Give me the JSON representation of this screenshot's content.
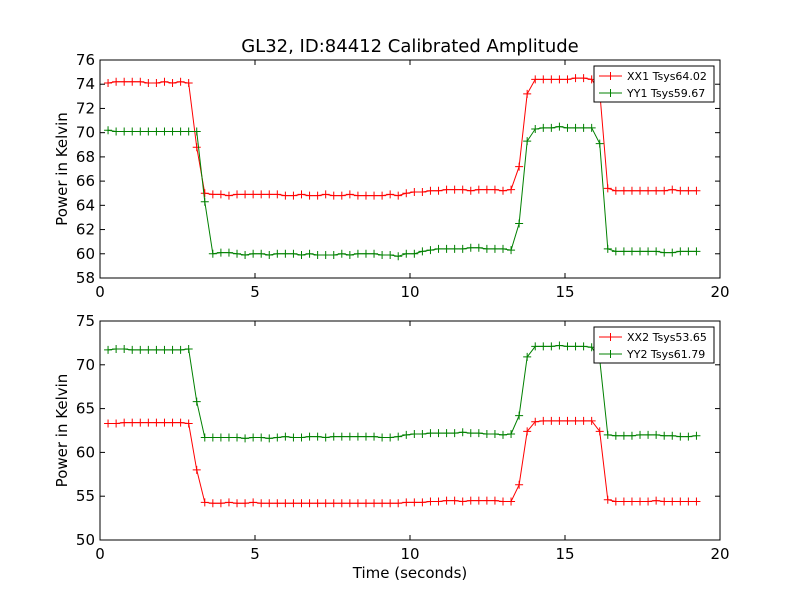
{
  "chart_data": [
    {
      "type": "line",
      "title": "GL32, ID:84412 Calibrated Amplitude",
      "xlabel": "",
      "ylabel": "Power in Kelvin",
      "xlim": [
        0,
        20
      ],
      "ylim": [
        58,
        76
      ],
      "xticks": [
        "0",
        "5",
        "10",
        "15",
        "20"
      ],
      "yticks": [
        "58",
        "60",
        "62",
        "64",
        "66",
        "68",
        "70",
        "72",
        "74",
        "76"
      ],
      "legend_position": "top-right",
      "x": [
        0.26,
        0.52,
        0.78,
        1.04,
        1.3,
        1.56,
        1.82,
        2.08,
        2.34,
        2.6,
        2.86,
        3.12,
        3.38,
        3.64,
        3.9,
        4.16,
        4.42,
        4.68,
        4.94,
        5.2,
        5.46,
        5.72,
        5.98,
        6.24,
        6.5,
        6.76,
        7.02,
        7.28,
        7.54,
        7.8,
        8.06,
        8.32,
        8.58,
        8.84,
        9.1,
        9.36,
        9.62,
        9.88,
        10.14,
        10.4,
        10.66,
        10.92,
        11.18,
        11.44,
        11.7,
        11.96,
        12.22,
        12.48,
        12.74,
        13.0,
        13.26,
        13.52,
        13.78,
        14.04,
        14.3,
        14.56,
        14.82,
        15.08,
        15.34,
        15.6,
        15.86,
        16.12,
        16.38,
        16.64,
        16.9,
        17.16,
        17.42,
        17.68,
        17.94,
        18.2,
        18.46,
        18.72,
        18.98,
        19.24
      ],
      "series": [
        {
          "name": "XX1 Tsys64.02",
          "color": "#ff0000",
          "values": [
            74.1,
            74.2,
            74.2,
            74.2,
            74.2,
            74.1,
            74.1,
            74.2,
            74.1,
            74.2,
            74.1,
            68.8,
            65.0,
            64.9,
            64.9,
            64.8,
            64.9,
            64.9,
            64.9,
            64.9,
            64.9,
            64.9,
            64.8,
            64.8,
            64.9,
            64.8,
            64.8,
            64.9,
            64.8,
            64.8,
            64.9,
            64.8,
            64.8,
            64.8,
            64.8,
            64.9,
            64.8,
            65.0,
            65.1,
            65.1,
            65.2,
            65.2,
            65.3,
            65.3,
            65.3,
            65.2,
            65.3,
            65.3,
            65.3,
            65.2,
            65.3,
            67.2,
            73.2,
            74.4,
            74.4,
            74.4,
            74.4,
            74.4,
            74.5,
            74.5,
            74.4,
            73.4,
            65.4,
            65.2,
            65.2,
            65.2,
            65.2,
            65.2,
            65.2,
            65.2,
            65.3,
            65.2,
            65.2,
            65.2
          ]
        },
        {
          "name": "YY1 Tsys59.67",
          "color": "#008000",
          "values": [
            70.2,
            70.1,
            70.1,
            70.1,
            70.1,
            70.1,
            70.1,
            70.1,
            70.1,
            70.1,
            70.1,
            70.1,
            64.3,
            60.0,
            60.1,
            60.1,
            60.0,
            59.9,
            60.0,
            60.0,
            59.9,
            60.0,
            60.0,
            60.0,
            59.9,
            60.0,
            59.9,
            59.9,
            59.9,
            60.0,
            59.9,
            60.0,
            60.0,
            60.0,
            59.9,
            59.9,
            59.8,
            60.0,
            60.0,
            60.2,
            60.3,
            60.4,
            60.4,
            60.4,
            60.4,
            60.5,
            60.5,
            60.4,
            60.4,
            60.4,
            60.3,
            62.5,
            69.3,
            70.3,
            70.4,
            70.4,
            70.5,
            70.4,
            70.4,
            70.4,
            70.4,
            69.1,
            60.4,
            60.2,
            60.2,
            60.2,
            60.2,
            60.2,
            60.2,
            60.1,
            60.1,
            60.2,
            60.2,
            60.2
          ]
        }
      ]
    },
    {
      "type": "line",
      "title": "",
      "xlabel": "Time (seconds)",
      "ylabel": "Power in Kelvin",
      "xlim": [
        0,
        20
      ],
      "ylim": [
        50,
        75
      ],
      "xticks": [
        "0",
        "5",
        "10",
        "15",
        "20"
      ],
      "yticks": [
        "50",
        "55",
        "60",
        "65",
        "70",
        "75"
      ],
      "legend_position": "top-right",
      "x": [
        0.26,
        0.52,
        0.78,
        1.04,
        1.3,
        1.56,
        1.82,
        2.08,
        2.34,
        2.6,
        2.86,
        3.12,
        3.38,
        3.64,
        3.9,
        4.16,
        4.42,
        4.68,
        4.94,
        5.2,
        5.46,
        5.72,
        5.98,
        6.24,
        6.5,
        6.76,
        7.02,
        7.28,
        7.54,
        7.8,
        8.06,
        8.32,
        8.58,
        8.84,
        9.1,
        9.36,
        9.62,
        9.88,
        10.14,
        10.4,
        10.66,
        10.92,
        11.18,
        11.44,
        11.7,
        11.96,
        12.22,
        12.48,
        12.74,
        13.0,
        13.26,
        13.52,
        13.78,
        14.04,
        14.3,
        14.56,
        14.82,
        15.08,
        15.34,
        15.6,
        15.86,
        16.12,
        16.38,
        16.64,
        16.9,
        17.16,
        17.42,
        17.68,
        17.94,
        18.2,
        18.46,
        18.72,
        18.98,
        19.24
      ],
      "series": [
        {
          "name": "XX2 Tsys53.65",
          "color": "#ff0000",
          "values": [
            63.3,
            63.3,
            63.4,
            63.4,
            63.4,
            63.4,
            63.4,
            63.4,
            63.4,
            63.4,
            63.3,
            58.0,
            54.3,
            54.2,
            54.2,
            54.3,
            54.2,
            54.2,
            54.3,
            54.2,
            54.2,
            54.2,
            54.2,
            54.2,
            54.2,
            54.2,
            54.2,
            54.2,
            54.2,
            54.2,
            54.2,
            54.2,
            54.2,
            54.2,
            54.2,
            54.2,
            54.2,
            54.3,
            54.3,
            54.3,
            54.4,
            54.4,
            54.5,
            54.5,
            54.4,
            54.5,
            54.5,
            54.5,
            54.5,
            54.4,
            54.4,
            56.3,
            62.4,
            63.5,
            63.6,
            63.6,
            63.6,
            63.6,
            63.6,
            63.6,
            63.6,
            62.4,
            54.6,
            54.4,
            54.4,
            54.4,
            54.4,
            54.4,
            54.5,
            54.4,
            54.4,
            54.4,
            54.4,
            54.4
          ]
        },
        {
          "name": "YY2 Tsys61.79",
          "color": "#008000",
          "values": [
            71.7,
            71.8,
            71.8,
            71.7,
            71.7,
            71.7,
            71.7,
            71.7,
            71.7,
            71.7,
            71.8,
            65.8,
            61.7,
            61.7,
            61.7,
            61.7,
            61.7,
            61.6,
            61.7,
            61.7,
            61.6,
            61.7,
            61.8,
            61.7,
            61.7,
            61.8,
            61.8,
            61.7,
            61.8,
            61.8,
            61.8,
            61.8,
            61.8,
            61.8,
            61.7,
            61.7,
            61.8,
            62.0,
            62.1,
            62.1,
            62.2,
            62.2,
            62.2,
            62.2,
            62.3,
            62.2,
            62.2,
            62.1,
            62.1,
            62.0,
            62.1,
            64.2,
            70.9,
            72.1,
            72.1,
            72.1,
            72.2,
            72.1,
            72.1,
            72.1,
            72.0,
            70.6,
            62.0,
            61.9,
            61.9,
            61.9,
            62.0,
            62.0,
            62.0,
            61.9,
            61.9,
            61.8,
            61.8,
            61.9
          ]
        }
      ]
    }
  ]
}
